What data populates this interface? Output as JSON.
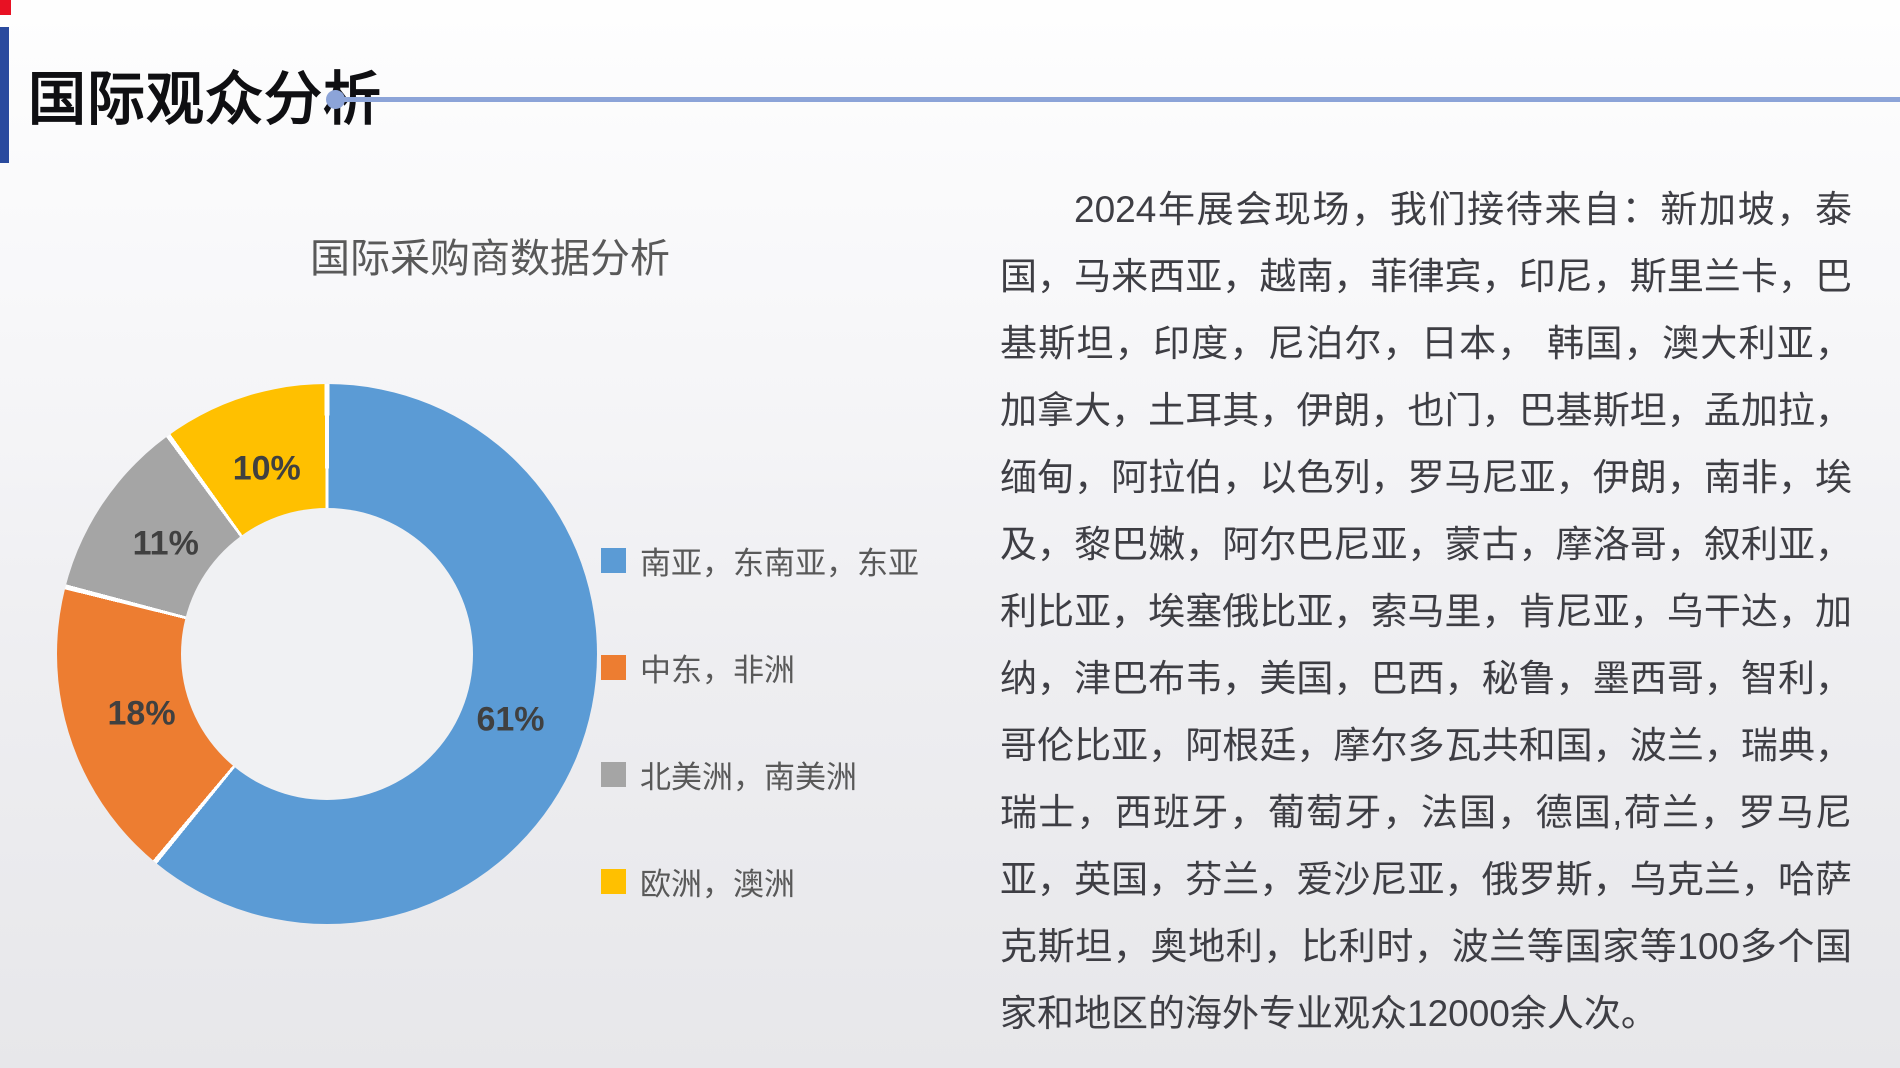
{
  "header": {
    "title": "国际观众分析"
  },
  "accent_colors": {
    "side_bar": "#2a4a9e",
    "corner_mark": "#e81123",
    "divider_line": "#8ca4d8"
  },
  "chart_data": {
    "type": "pie",
    "donut": true,
    "title": "国际采购商数据分析",
    "labels": [
      "南亚，东南亚，东亚",
      "中东，非洲",
      "北美洲，南美洲",
      "欧洲，澳洲"
    ],
    "values": [
      61,
      18,
      11,
      10
    ],
    "value_labels": [
      "61%",
      "18%",
      "11%",
      "10%"
    ],
    "colors": [
      "#5B9BD5",
      "#ED7D31",
      "#A5A5A5",
      "#FFC000"
    ],
    "legend_position": "right",
    "title_color": "#595959",
    "label_color": "#404040",
    "legend_text_color": "#595959"
  },
  "paragraph": {
    "text": "2024年展会现场，我们接待来自：新加坡，泰国，马来西亚，越南，菲律宾，印尼，斯里兰卡，巴基斯坦，印度，尼泊尔，日本， 韩国，澳大利亚，加拿大，土耳其，伊朗，也门，巴基斯坦，孟加拉，缅甸，阿拉伯，以色列，罗马尼亚，伊朗，南非，埃及，黎巴嫩，阿尔巴尼亚，蒙古，摩洛哥，叙利亚，利比亚，埃塞俄比亚，索马里，肯尼亚，乌干达，加纳，津巴布韦，美国，巴西，秘鲁，墨西哥，智利，哥伦比亚，阿根廷，摩尔多瓦共和国，波兰，瑞典，瑞士，西班牙，葡萄牙，法国，德国,荷兰，罗马尼亚，英国，芬兰，爱沙尼亚，俄罗斯，乌克兰，哈萨克斯坦，奥地利，比利时，波兰等国家等100多个国家和地区的海外专业观众12000余人次。"
  }
}
